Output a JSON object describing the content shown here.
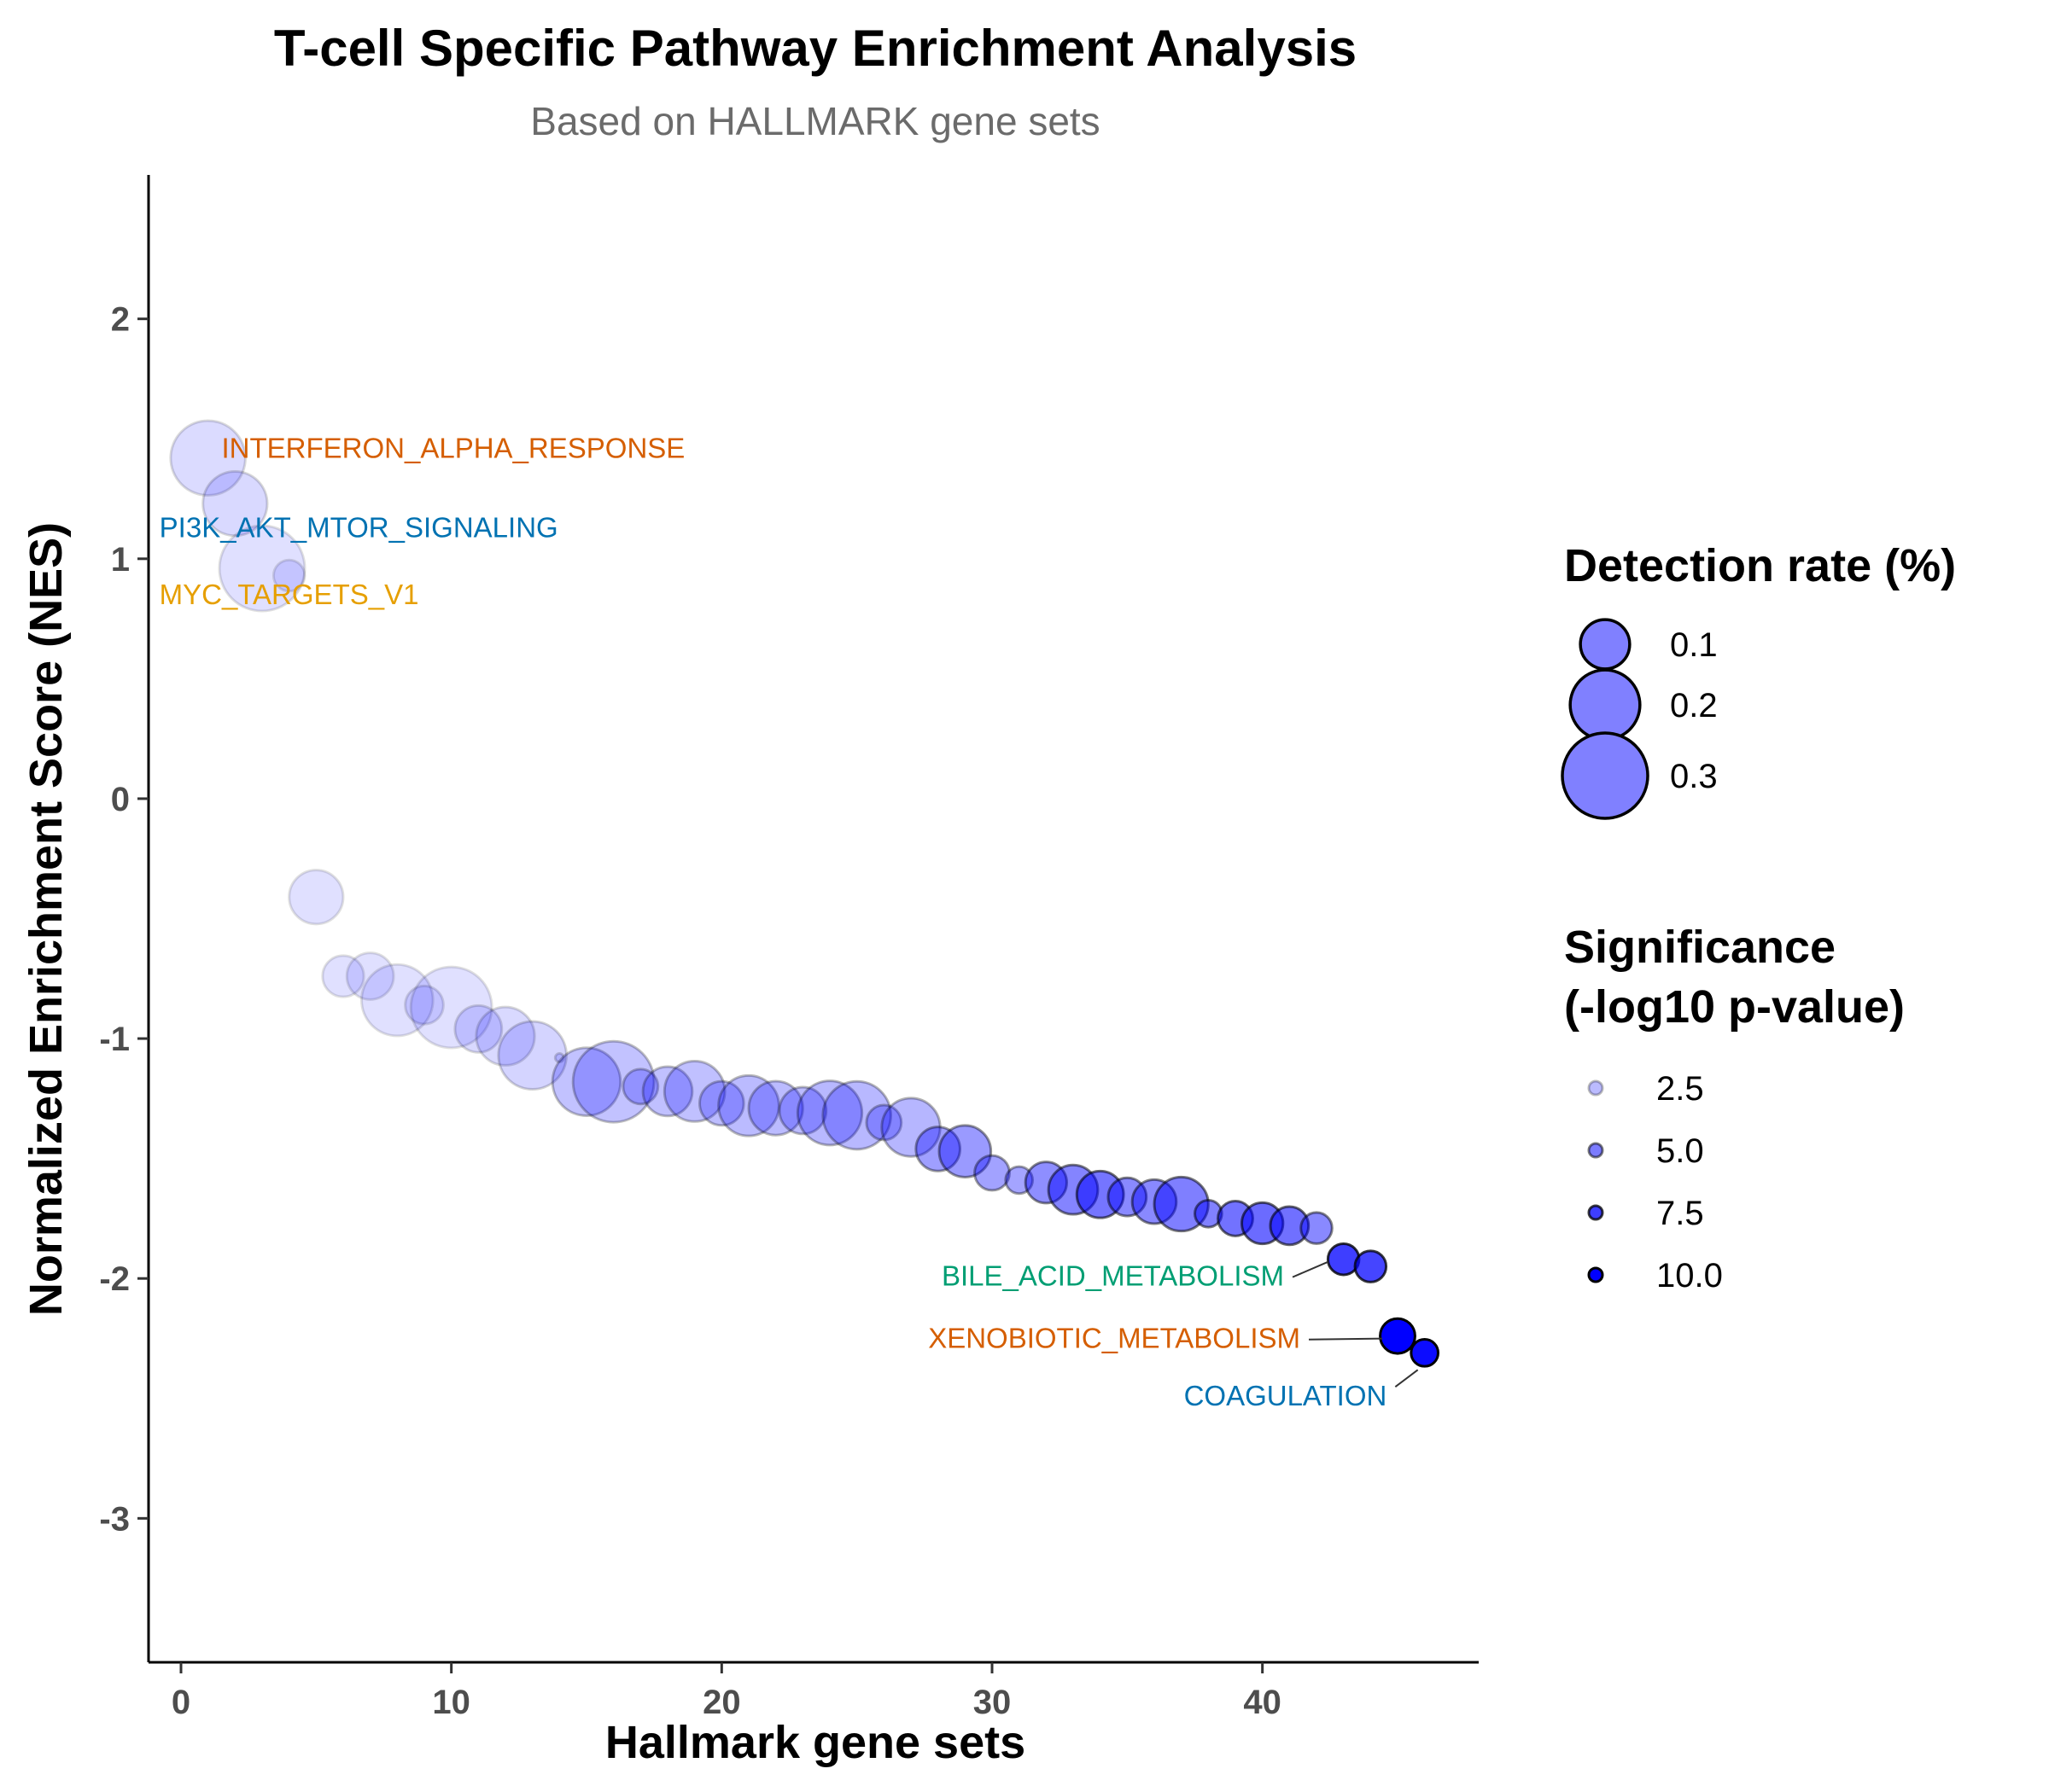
{
  "chart_data": {
    "type": "scatter",
    "title": "T-cell Specific Pathway Enrichment Analysis",
    "subtitle": "Based on HALLMARK gene sets",
    "xlabel": "Hallmark gene sets",
    "ylabel": "Normalized Enrichment Score (NES)",
    "xlim": [
      -1.2,
      48
    ],
    "ylim": [
      -3.6,
      2.6
    ],
    "x_ticks": [
      0,
      10,
      20,
      30,
      40
    ],
    "y_ticks": [
      2,
      1,
      0,
      -1,
      -2,
      -3
    ],
    "grid": false,
    "color": "#0000ff",
    "points": [
      {
        "x": 1,
        "y": 1.42,
        "rate": 0.23,
        "sig": 1.2
      },
      {
        "x": 2,
        "y": 1.23,
        "rate": 0.17,
        "sig": 1.3
      },
      {
        "x": 3,
        "y": 0.96,
        "rate": 0.3,
        "sig": 0.5
      },
      {
        "x": 4,
        "y": 0.93,
        "rate": 0.04,
        "sig": 1.0
      },
      {
        "x": 5,
        "y": -0.41,
        "rate": 0.12,
        "sig": 1.0
      },
      {
        "x": 6,
        "y": -0.74,
        "rate": 0.07,
        "sig": 1.0
      },
      {
        "x": 7,
        "y": -0.74,
        "rate": 0.09,
        "sig": 1.0
      },
      {
        "x": 8,
        "y": -0.84,
        "rate": 0.21,
        "sig": 1.0
      },
      {
        "x": 9,
        "y": -0.86,
        "rate": 0.06,
        "sig": 1.1
      },
      {
        "x": 10,
        "y": -0.87,
        "rate": 0.27,
        "sig": 0.8
      },
      {
        "x": 11,
        "y": -0.96,
        "rate": 0.09,
        "sig": 1.3
      },
      {
        "x": 12,
        "y": -0.99,
        "rate": 0.14,
        "sig": 1.3
      },
      {
        "x": 13,
        "y": -1.07,
        "rate": 0.19,
        "sig": 1.5
      },
      {
        "x": 14,
        "y": -1.08,
        "rate": 0.003,
        "sig": 1.5
      },
      {
        "x": 15,
        "y": -1.18,
        "rate": 0.19,
        "sig": 2.2
      },
      {
        "x": 16,
        "y": -1.18,
        "rate": 0.27,
        "sig": 2.2
      },
      {
        "x": 17,
        "y": -1.2,
        "rate": 0.05,
        "sig": 2.3
      },
      {
        "x": 18,
        "y": -1.22,
        "rate": 0.1,
        "sig": 2.3
      },
      {
        "x": 19,
        "y": -1.22,
        "rate": 0.15,
        "sig": 2.3
      },
      {
        "x": 20,
        "y": -1.27,
        "rate": 0.08,
        "sig": 2.4
      },
      {
        "x": 21,
        "y": -1.28,
        "rate": 0.15,
        "sig": 2.5
      },
      {
        "x": 22,
        "y": -1.29,
        "rate": 0.12,
        "sig": 2.5
      },
      {
        "x": 23,
        "y": -1.3,
        "rate": 0.09,
        "sig": 2.5
      },
      {
        "x": 24,
        "y": -1.31,
        "rate": 0.17,
        "sig": 2.6
      },
      {
        "x": 25,
        "y": -1.32,
        "rate": 0.19,
        "sig": 2.6
      },
      {
        "x": 26,
        "y": -1.35,
        "rate": 0.05,
        "sig": 2.6
      },
      {
        "x": 27,
        "y": -1.37,
        "rate": 0.14,
        "sig": 2.7
      },
      {
        "x": 28,
        "y": -1.46,
        "rate": 0.08,
        "sig": 3.6
      },
      {
        "x": 29,
        "y": -1.47,
        "rate": 0.11,
        "sig": 3.8
      },
      {
        "x": 30,
        "y": -1.56,
        "rate": 0.05,
        "sig": 3.5
      },
      {
        "x": 31,
        "y": -1.59,
        "rate": 0.03,
        "sig": 3.4
      },
      {
        "x": 32,
        "y": -1.6,
        "rate": 0.07,
        "sig": 4.3
      },
      {
        "x": 33,
        "y": -1.63,
        "rate": 0.1,
        "sig": 4.7
      },
      {
        "x": 34,
        "y": -1.65,
        "rate": 0.09,
        "sig": 5.3
      },
      {
        "x": 35,
        "y": -1.66,
        "rate": 0.06,
        "sig": 4.5
      },
      {
        "x": 36,
        "y": -1.68,
        "rate": 0.08,
        "sig": 4.5
      },
      {
        "x": 37,
        "y": -1.69,
        "rate": 0.12,
        "sig": 4.9
      },
      {
        "x": 38,
        "y": -1.73,
        "rate": 0.03,
        "sig": 4.8
      },
      {
        "x": 39,
        "y": -1.75,
        "rate": 0.05,
        "sig": 5.4
      },
      {
        "x": 40,
        "y": -1.77,
        "rate": 0.07,
        "sig": 5.7
      },
      {
        "x": 41,
        "y": -1.78,
        "rate": 0.06,
        "sig": 5.5
      },
      {
        "x": 42,
        "y": -1.79,
        "rate": 0.04,
        "sig": 4.5
      },
      {
        "x": 43,
        "y": -1.92,
        "rate": 0.04,
        "sig": 7.5
      },
      {
        "x": 44,
        "y": -1.95,
        "rate": 0.04,
        "sig": 7.2
      },
      {
        "x": 45,
        "y": -2.24,
        "rate": 0.05,
        "sig": 10.0
      },
      {
        "x": 46,
        "y": -2.31,
        "rate": 0.03,
        "sig": 9.5
      }
    ],
    "annotations": [
      {
        "label": "INTERFERON_ALPHA_RESPONSE",
        "x": 1.5,
        "y": 1.42,
        "anchor": "start",
        "color": "#d55e00",
        "line": false
      },
      {
        "label": "PI3K_AKT_MTOR_SIGNALING",
        "x": -0.8,
        "y": 1.09,
        "anchor": "start",
        "color": "#0072b2",
        "line": false
      },
      {
        "label": "MYC_TARGETS_V1",
        "x": -0.8,
        "y": 0.81,
        "anchor": "start",
        "color": "#e69f00",
        "line": false
      },
      {
        "label": "BILE_ACID_METABOLISM",
        "x": 40.8,
        "y": -2.03,
        "anchor": "end",
        "color": "#009e73",
        "line": true,
        "px": 43,
        "py": -1.92
      },
      {
        "label": "XENOBIOTIC_METABOLISM",
        "x": 41.4,
        "y": -2.29,
        "anchor": "end",
        "color": "#d55e00",
        "line": true,
        "px": 45,
        "py": -2.24
      },
      {
        "label": "COAGULATION",
        "x": 44.6,
        "y": -2.53,
        "anchor": "end",
        "color": "#0072b2",
        "line": true,
        "px": 46,
        "py": -2.31
      }
    ],
    "legend_size": {
      "title": "Detection rate (%)",
      "entries": [
        {
          "label": "0.1",
          "value": 0.1
        },
        {
          "label": "0.2",
          "value": 0.2
        },
        {
          "label": "0.3",
          "value": 0.3
        }
      ]
    },
    "legend_alpha": {
      "title_line1": "Significance",
      "title_line2": "(-log10 p-value)",
      "entries": [
        {
          "label": "2.5",
          "value": 2.5
        },
        {
          "label": "5.0",
          "value": 5.0
        },
        {
          "label": "7.5",
          "value": 7.5
        },
        {
          "label": "10.0",
          "value": 10.0
        }
      ]
    },
    "legend_placement": "right"
  }
}
